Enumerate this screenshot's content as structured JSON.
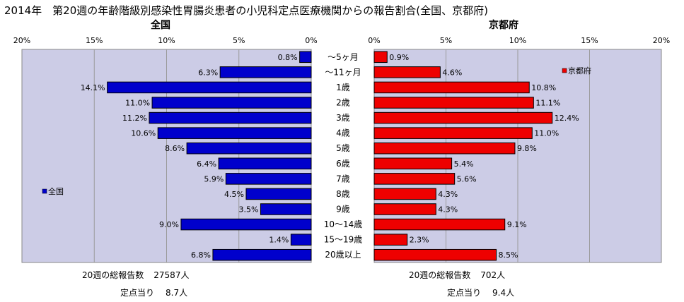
{
  "title": "2014年　第20週の年齢階級別感染性胃腸炎患者の小児科定点医療機関からの報告割合(全国、京都府)",
  "chart_data": [
    {
      "type": "bar",
      "orientation": "horizontal",
      "subtitle": "全国",
      "series": [
        {
          "name": "全国",
          "color": "#0000cc",
          "values": [
            0.8,
            6.3,
            14.1,
            11.0,
            11.2,
            10.6,
            8.6,
            6.4,
            5.9,
            4.5,
            3.5,
            9.0,
            1.4,
            6.8
          ]
        }
      ],
      "categories": [
        "～5ヶ月",
        "～11ヶ月",
        "1歳",
        "2歳",
        "3歳",
        "4歳",
        "5歳",
        "6歳",
        "7歳",
        "8歳",
        "9歳",
        "10～14歳",
        "15～19歳",
        "20歳以上"
      ],
      "value_labels": [
        "0.8%",
        "6.3%",
        "14.1%",
        "11.0%",
        "11.2%",
        "10.6%",
        "8.6%",
        "6.4%",
        "5.9%",
        "4.5%",
        "3.5%",
        "9.0%",
        "1.4%",
        "6.8%"
      ],
      "xlim": [
        0,
        20
      ],
      "x_reversed": true,
      "ticks": [
        "20%",
        "15%",
        "10%",
        "5%",
        "0%"
      ],
      "legend_position": "left",
      "grid": true
    },
    {
      "type": "bar",
      "orientation": "horizontal",
      "subtitle": "京都府",
      "series": [
        {
          "name": "京都府",
          "color": "#ee0000",
          "values": [
            0.9,
            4.6,
            10.8,
            11.1,
            12.4,
            11.0,
            9.8,
            5.4,
            5.6,
            4.3,
            4.3,
            9.1,
            2.3,
            8.5
          ]
        }
      ],
      "categories": [
        "～5ヶ月",
        "～11ヶ月",
        "1歳",
        "2歳",
        "3歳",
        "4歳",
        "5歳",
        "6歳",
        "7歳",
        "8歳",
        "9歳",
        "10～14歳",
        "15～19歳",
        "20歳以上"
      ],
      "value_labels": [
        "0.9%",
        "4.6%",
        "10.8%",
        "11.1%",
        "12.4%",
        "11.0%",
        "9.8%",
        "5.4%",
        "5.6%",
        "4.3%",
        "4.3%",
        "9.1%",
        "2.3%",
        "8.5%"
      ],
      "xlim": [
        0,
        20
      ],
      "x_reversed": false,
      "ticks": [
        "0%",
        "5%",
        "10%",
        "15%",
        "20%"
      ],
      "legend_position": "top-right",
      "grid": true
    }
  ],
  "footer": {
    "national": {
      "reports_label": "20週の総報告数",
      "reports_value": "27587人",
      "per_site_label": "定点当り",
      "per_site_value": "8.7人"
    },
    "kyoto": {
      "reports_label": "20週の総報告数",
      "reports_value": "702人",
      "per_site_label": "定点当り",
      "per_site_value": "9.4人"
    }
  },
  "colors": {
    "plot_background": "#cccce6",
    "national_bar": "#0000cc",
    "kyoto_bar": "#ee0000"
  }
}
